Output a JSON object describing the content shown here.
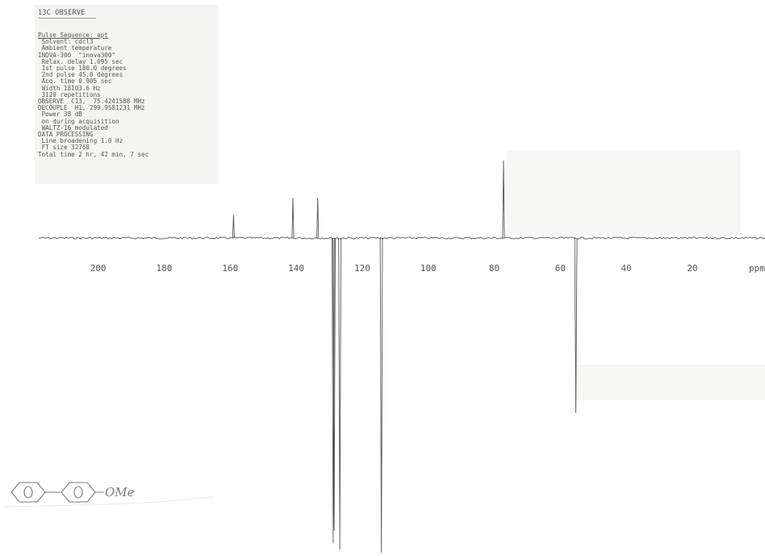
{
  "params": {
    "title": "13C OBSERVE",
    "lines": [
      "Pulse Sequence: apt",
      " Solvent: cdcl3",
      " Ambient temperature",
      "INOVA-300  \"inova300\"",
      "",
      " Relax. delay 1.095 sec",
      " 1st pulse 180.0 degrees",
      " 2nd pulse 45.0 degrees",
      " Acq. time 0.905 sec",
      " Width 18103.6 Hz",
      " 3120 repetitions",
      "OBSERVE  C13,  75.4241588 MHz",
      "DECOUPLE  H1, 299.9581231 MHz",
      " Power 38 dB",
      " on during acquisition",
      " WALTZ-16 modulated",
      "DATA PROCESSING",
      " Line broadening 1.0 Hz",
      " FT size 32768",
      "Total time 2 hr, 42 min, 7 sec"
    ]
  },
  "chart_data": {
    "type": "line",
    "title": "",
    "xlabel": "ppm",
    "ylabel": "",
    "x_ticks": [
      200,
      180,
      160,
      140,
      120,
      100,
      80,
      60,
      40,
      20
    ],
    "tick_labels": [
      "200",
      "180",
      "160",
      "140",
      "120",
      "100",
      "80",
      "60",
      "40",
      "20"
    ],
    "xlim": [
      218,
      -2
    ],
    "x_reversed": true,
    "ylim": [
      -1,
      0.3
    ],
    "grid": false,
    "legend": "none",
    "baseline_color": "#666666",
    "series": [
      {
        "peaks": [
          {
            "ppm": 159.0,
            "intensity": 0.08
          },
          {
            "ppm": 141.0,
            "intensity": 0.14
          },
          {
            "ppm": 133.5,
            "intensity": 0.14
          },
          {
            "ppm": 128.8,
            "intensity": -0.96
          },
          {
            "ppm": 128.5,
            "intensity": -0.92
          },
          {
            "ppm": 126.8,
            "intensity": -0.98
          },
          {
            "ppm": 114.2,
            "intensity": -0.99
          },
          {
            "ppm": 77.2,
            "intensity": 0.27
          },
          {
            "ppm": 55.3,
            "intensity": -0.55
          }
        ]
      }
    ]
  },
  "structure": {
    "substituent": "OMe"
  }
}
